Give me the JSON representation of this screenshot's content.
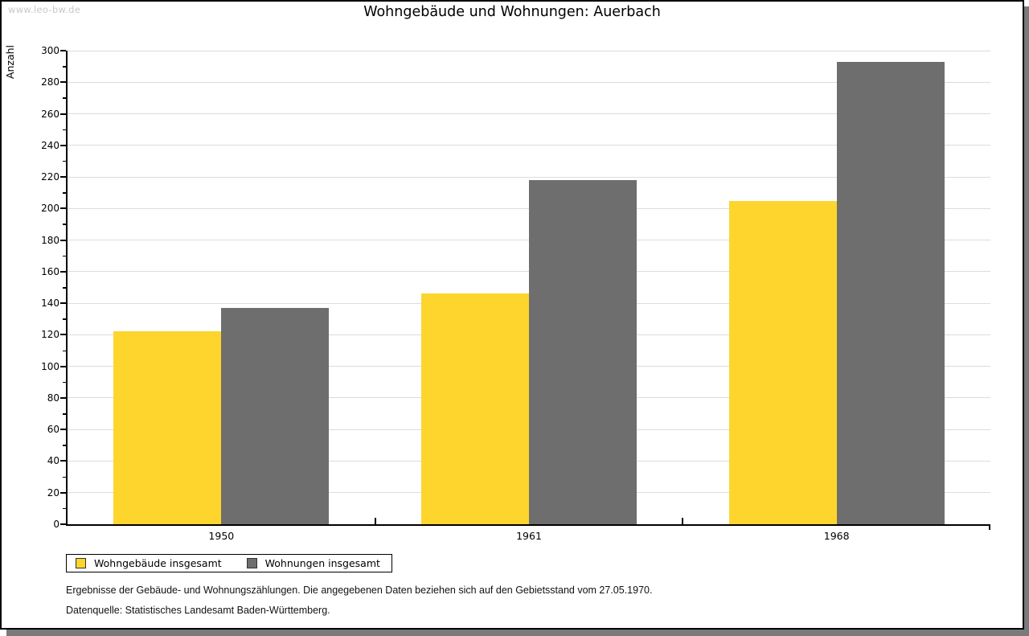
{
  "page": {
    "watermark": "www.leo-bw.de",
    "footnotes": [
      "Ergebnisse der Gebäude- und Wohnungszählungen. Die angegebenen Daten beziehen sich auf den Gebietsstand vom 27.05.1970.",
      "Datenquelle: Statistisches Landesamt Baden-Württemberg."
    ],
    "colors": {
      "border": "#000000",
      "shadow": "#7a7a7a",
      "watermark_text": "#c8c8c8"
    }
  },
  "chart_data": {
    "type": "bar",
    "title": "Wohngebäude und Wohnungen: Auerbach",
    "categories": [
      "1950",
      "1961",
      "1968"
    ],
    "series": [
      {
        "name": "Wohngebäude insgesamt",
        "color": "#fdd52d",
        "values": [
          122,
          146,
          205
        ]
      },
      {
        "name": "Wohnungen insgesamt",
        "color": "#6e6e6e",
        "values": [
          137,
          218,
          293
        ]
      }
    ],
    "xlabel": "",
    "ylabel": "Anzahl",
    "ylim": [
      0,
      300
    ],
    "ytick_step": 20,
    "yminor_step": 10,
    "grid": true,
    "grid_color": "#dcdcdc",
    "axis_color": "#000000",
    "legend_position": "bottom-left"
  }
}
